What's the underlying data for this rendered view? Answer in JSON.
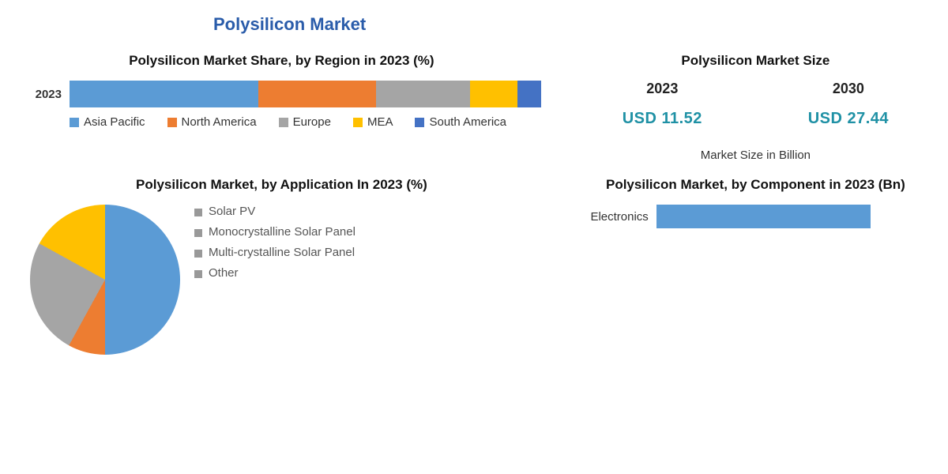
{
  "main_title": "Polysilicon Market",
  "colors": {
    "blue": "#5b9bd5",
    "orange": "#ed7d31",
    "grey": "#a5a5a5",
    "yellow": "#ffc000",
    "darkblue": "#4472c4",
    "cyan": "#1f91a5"
  },
  "region_chart": {
    "title": "Polysilicon Market Share, by Region in 2023 (%)",
    "ylabel": "2023",
    "segments": [
      {
        "label": "Asia Pacific",
        "value": 40,
        "color": "#5b9bd5"
      },
      {
        "label": "North America",
        "value": 25,
        "color": "#ed7d31"
      },
      {
        "label": "Europe",
        "value": 20,
        "color": "#a5a5a5"
      },
      {
        "label": "MEA",
        "value": 10,
        "color": "#ffc000"
      },
      {
        "label": "South America",
        "value": 5,
        "color": "#4472c4"
      }
    ]
  },
  "market_size": {
    "title": "Polysilicon Market Size",
    "footer": "Market Size in Billion",
    "value_color": "#1f91a5",
    "points": [
      {
        "year": "2023",
        "value": "USD 11.52"
      },
      {
        "year": "2030",
        "value": "USD 27.44"
      }
    ]
  },
  "application_chart": {
    "title": "Polysilicon Market, by Application In 2023 (%)",
    "slices": [
      {
        "label": "Solar PV",
        "value": 50,
        "color": "#5b9bd5"
      },
      {
        "label": "Monocrystalline Solar Panel",
        "value": 8,
        "color": "#ed7d31"
      },
      {
        "label": "Multi-crystalline Solar Panel",
        "value": 25,
        "color": "#a5a5a5"
      },
      {
        "label": "Other",
        "value": 17,
        "color": "#ffc000"
      }
    ],
    "legend_bullet_color": "#999999"
  },
  "component_chart": {
    "title": "Polysilicon Market, by Component in 2023 (Bn)",
    "bars": [
      {
        "category": "Electronics",
        "value": 75,
        "max": 100,
        "color": "#5b9bd5"
      }
    ]
  }
}
